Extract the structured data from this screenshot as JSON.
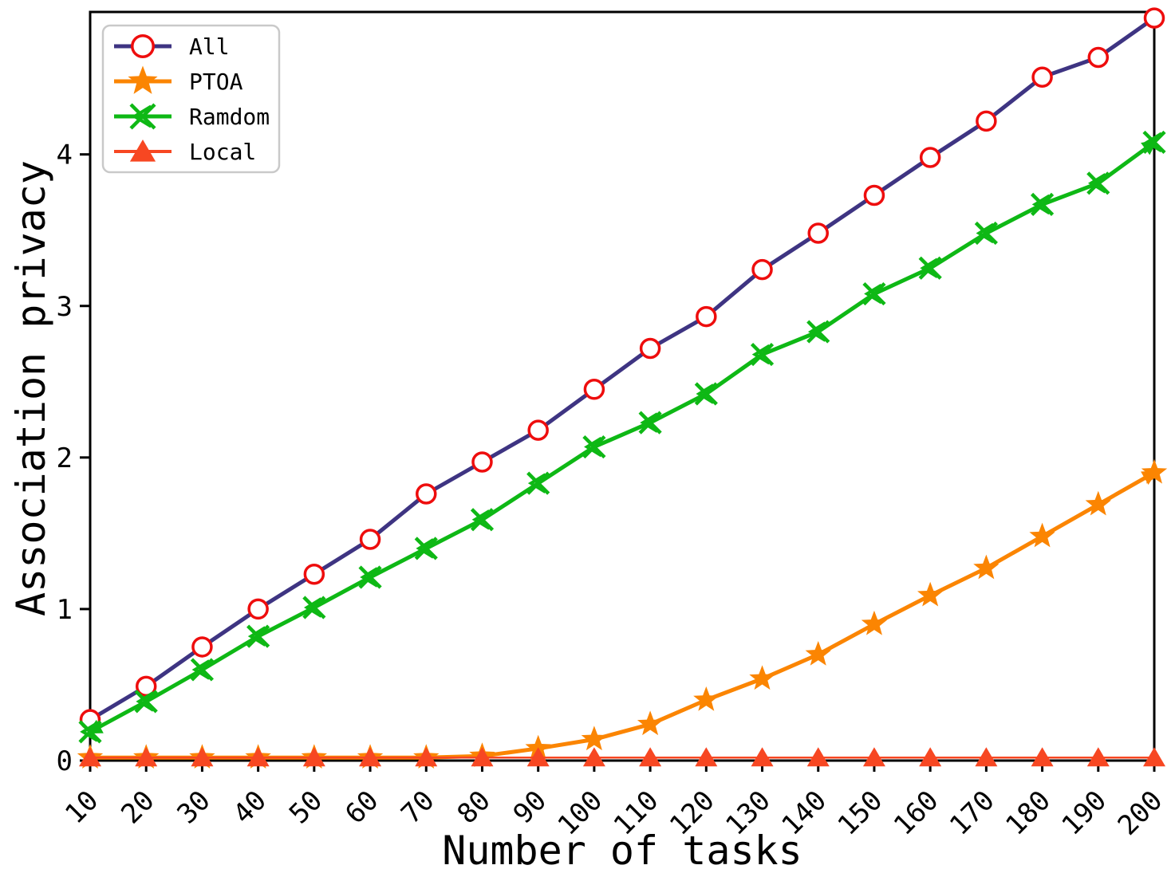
{
  "figure": {
    "background": "#ffffff",
    "border_color": "#000000"
  },
  "chart_data": {
    "type": "line",
    "title": "",
    "xlabel": "Number of tasks",
    "ylabel": "Association privacy",
    "grid": false,
    "legend_position": "upper-left",
    "xlim": [
      10,
      200
    ],
    "ylim": [
      0,
      4.94
    ],
    "xticks": [
      10,
      20,
      30,
      40,
      50,
      60,
      70,
      80,
      90,
      100,
      110,
      120,
      130,
      140,
      150,
      160,
      170,
      180,
      190,
      200
    ],
    "yticks": [
      0,
      1,
      2,
      3,
      4
    ],
    "x": [
      10,
      20,
      30,
      40,
      50,
      60,
      70,
      80,
      90,
      100,
      110,
      120,
      130,
      140,
      150,
      160,
      170,
      180,
      190,
      200
    ],
    "series": [
      {
        "name": "All",
        "color": "#3e3482",
        "marker": "circle-open",
        "marker_color": "#ee0d0d",
        "line_width": 5,
        "arrow_start": false,
        "arrow_end": false,
        "values": [
          0.27,
          0.49,
          0.75,
          1.0,
          1.23,
          1.46,
          1.76,
          1.97,
          2.18,
          2.45,
          2.72,
          2.93,
          3.24,
          3.48,
          3.73,
          3.98,
          4.22,
          4.51,
          4.64,
          4.9
        ]
      },
      {
        "name": "PTOA",
        "color": "#fb8502",
        "marker": "star",
        "marker_color": "#fb8502",
        "line_width": 5,
        "arrow_start": false,
        "arrow_end": true,
        "values": [
          0.02,
          0.02,
          0.02,
          0.02,
          0.02,
          0.02,
          0.02,
          0.03,
          0.08,
          0.14,
          0.24,
          0.4,
          0.54,
          0.7,
          0.9,
          1.09,
          1.27,
          1.48,
          1.69,
          1.9
        ]
      },
      {
        "name": "Ramdom",
        "color": "#0eb815",
        "marker": "x-caret",
        "marker_color": "#0eb815",
        "line_width": 5,
        "arrow_start": true,
        "arrow_end": true,
        "values": [
          0.19,
          0.39,
          0.6,
          0.82,
          1.01,
          1.21,
          1.4,
          1.59,
          1.83,
          2.07,
          2.23,
          2.42,
          2.68,
          2.83,
          3.08,
          3.25,
          3.48,
          3.67,
          3.81,
          4.08
        ]
      },
      {
        "name": "Local",
        "color": "#f74722",
        "marker": "triangle",
        "marker_color": "#f74722",
        "line_width": 2.5,
        "arrow_start": false,
        "arrow_end": false,
        "values": [
          0.02,
          0.02,
          0.02,
          0.02,
          0.02,
          0.02,
          0.02,
          0.02,
          0.02,
          0.02,
          0.02,
          0.02,
          0.02,
          0.02,
          0.02,
          0.02,
          0.02,
          0.02,
          0.02,
          0.02
        ]
      }
    ]
  }
}
